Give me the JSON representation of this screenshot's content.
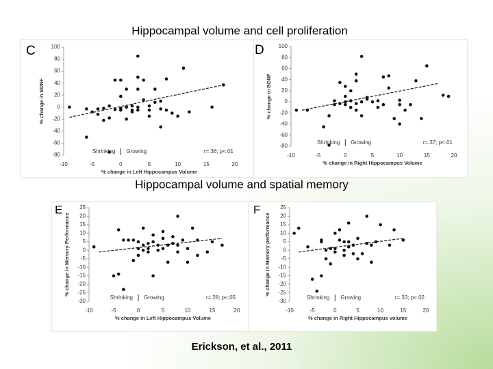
{
  "slide": {
    "heading1": "Hippocampal volume and cell proliferation",
    "heading2": "Hippocampal volume and spatial memory",
    "citation": "Erickson, et al., 2011"
  },
  "chart_data": [
    {
      "type": "scatter",
      "label": "C",
      "ylabel": "% change in BDNF",
      "xlabel": "% change in Left Hippocampus Volume",
      "xlim": [
        -10,
        20
      ],
      "xticks": [
        -10,
        -5,
        0,
        5,
        10,
        15,
        20
      ],
      "ylim": [
        -80,
        100
      ],
      "yticks": [
        -80,
        -60,
        -40,
        -20,
        0,
        20,
        40,
        60,
        80,
        100
      ],
      "shrink": "Shrinking",
      "grow": "Growing",
      "stat": "r=.36; p<.01",
      "color": "#111111",
      "x": [
        -9,
        -6,
        -6,
        -5,
        -4,
        -3,
        -3,
        -2,
        -2,
        -1,
        -1,
        0,
        0,
        0,
        1,
        1,
        1,
        2,
        2,
        2,
        3,
        3,
        3,
        3,
        3,
        4,
        5,
        5,
        5,
        6,
        6,
        7,
        7,
        7,
        8,
        8,
        9,
        10,
        11,
        12,
        16,
        18,
        -4,
        -2,
        0,
        4
      ],
      "values": [
        0,
        -3,
        -50,
        -8,
        -3,
        -2,
        -22,
        2,
        -18,
        -4,
        45,
        -5,
        -2,
        45,
        0,
        30,
        -20,
        2,
        -5,
        -8,
        0,
        30,
        50,
        85,
        -5,
        45,
        -5,
        2,
        -15,
        8,
        30,
        10,
        -3,
        -33,
        47,
        -5,
        -10,
        -15,
        65,
        -8,
        0,
        37,
        -12,
        -75,
        18,
        12
      ],
      "trend_x": [
        -9,
        18
      ],
      "trend_y": [
        -17,
        37
      ]
    },
    {
      "type": "scatter",
      "label": "D",
      "ylabel": "% change in BDNF",
      "xlabel": "% change in Right Hippocampus Volume",
      "xlim": [
        -10,
        20
      ],
      "xticks": [
        -10,
        -5,
        0,
        5,
        10,
        15,
        20
      ],
      "ylim": [
        -80,
        100
      ],
      "yticks": [
        -80,
        -60,
        -40,
        -20,
        0,
        20,
        40,
        60,
        80,
        100
      ],
      "shrink": "Shrinking",
      "grow": "Growing",
      "stat": "r=.37; p<.01",
      "color": "#111111",
      "x": [
        -9,
        -7,
        -4,
        -3,
        -3,
        -2,
        -2,
        -1,
        -1,
        0,
        0,
        0,
        0,
        1,
        1,
        1,
        2,
        2,
        2,
        2,
        3,
        3,
        3,
        4,
        4,
        5,
        6,
        6,
        7,
        7,
        8,
        8,
        9,
        10,
        10,
        10,
        11,
        12,
        13,
        14,
        15,
        18,
        19
      ],
      "values": [
        -15,
        -15,
        -45,
        -25,
        -78,
        2,
        -5,
        35,
        -3,
        28,
        0,
        -5,
        10,
        2,
        -10,
        20,
        38,
        -3,
        50,
        -15,
        0,
        82,
        -25,
        5,
        8,
        0,
        2,
        -10,
        45,
        -5,
        47,
        25,
        -30,
        -40,
        3,
        -5,
        -15,
        -5,
        38,
        -30,
        65,
        12,
        10
      ],
      "trend_x": [
        -8,
        17
      ],
      "trend_y": [
        -15,
        33
      ]
    },
    {
      "type": "scatter",
      "label": "E",
      "ylabel": "% change in Memory Performance",
      "xlabel": "% change in Left Hippocampus Volume",
      "xlim": [
        -10,
        20
      ],
      "xticks": [
        -10,
        -5,
        0,
        5,
        10,
        15,
        20
      ],
      "ylim": [
        -30,
        25
      ],
      "yticks": [
        -30,
        -25,
        -20,
        -15,
        -10,
        -5,
        0,
        5,
        10,
        15,
        20,
        25
      ],
      "shrink": "Shrinking",
      "grow": "Growing",
      "stat": "r=.28; p<.05",
      "color": "#111111",
      "x": [
        -9,
        -5,
        -4,
        -4,
        -3,
        -3,
        -2,
        -1,
        -1,
        0,
        0,
        0,
        1,
        1,
        1,
        2,
        2,
        2,
        3,
        3,
        3,
        4,
        4,
        5,
        5,
        5,
        6,
        6,
        7,
        7,
        8,
        8,
        8,
        9,
        10,
        10,
        11,
        12,
        12,
        14,
        15,
        17
      ],
      "values": [
        2,
        -15,
        -14,
        12,
        6,
        -23,
        6,
        6,
        -6,
        5,
        -3,
        1,
        0,
        13,
        3,
        1,
        -1,
        4,
        5,
        9,
        -15,
        3,
        0,
        7,
        11,
        1,
        -7,
        3,
        4,
        8,
        20,
        -1,
        3,
        6,
        -7,
        1,
        13,
        -3,
        6,
        -1,
        5,
        3
      ],
      "trend_x": [
        -8,
        17
      ],
      "trend_y": [
        -1,
        7
      ]
    },
    {
      "type": "scatter",
      "label": "F",
      "ylabel": "% change in Memory performance",
      "xlabel": "% change in Right Hippocampus volume",
      "xlim": [
        -10,
        20
      ],
      "xticks": [
        -10,
        -5,
        0,
        5,
        10,
        15,
        20
      ],
      "ylim": [
        -30,
        25
      ],
      "yticks": [
        -30,
        -25,
        -20,
        -15,
        -10,
        -5,
        0,
        5,
        10,
        15,
        20,
        25
      ],
      "shrink": "Shrinking",
      "grow": "Growing",
      "stat": "r=.33; p<.02",
      "color": "#111111",
      "x": [
        -9,
        -8,
        -6,
        -5,
        -4,
        -3,
        -3,
        -3,
        -2,
        -2,
        -1,
        -1,
        0,
        0,
        0,
        1,
        1,
        2,
        2,
        2,
        3,
        3,
        3,
        4,
        4,
        5,
        5,
        6,
        7,
        7,
        8,
        8,
        9,
        10,
        12,
        13,
        15
      ],
      "values": [
        10,
        13,
        2,
        -17,
        -24,
        6,
        -15,
        5,
        -5,
        0,
        1,
        -8,
        1,
        10,
        -1,
        6,
        12,
        5,
        -3,
        0,
        2,
        16,
        5,
        -2,
        3,
        7,
        -5,
        -2,
        20,
        4,
        -7,
        3,
        5,
        15,
        3,
        12,
        6
      ],
      "trend_x": [
        -8,
        15
      ],
      "trend_y": [
        -1,
        7
      ]
    }
  ]
}
